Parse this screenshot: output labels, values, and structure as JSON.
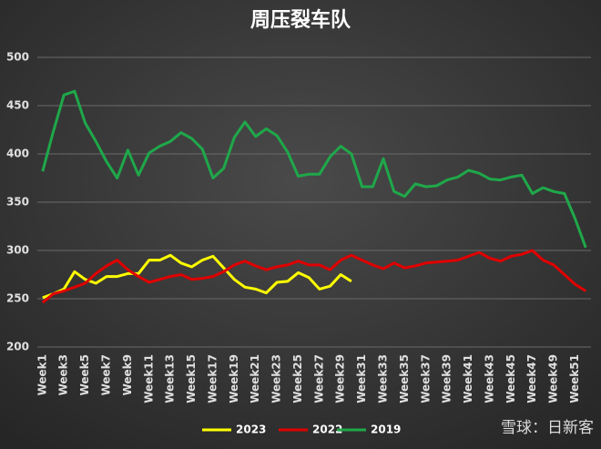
{
  "chart_data": {
    "type": "line",
    "title": "周压裂车队",
    "categories": [
      "Week1",
      null,
      "Week3",
      null,
      "Week5",
      null,
      "Week7",
      null,
      "Week9",
      null,
      "Week11",
      null,
      "Week13",
      null,
      "Week15",
      null,
      "Week17",
      null,
      "Week19",
      null,
      "Week21",
      null,
      "Week23",
      null,
      "Week25",
      null,
      "Week27",
      null,
      "Week29",
      null,
      "Week31",
      null,
      "Week33",
      null,
      "Week35",
      null,
      "Week37",
      null,
      "Week39",
      null,
      "Week41",
      null,
      "Week43",
      null,
      "Week45",
      null,
      "Week47",
      null,
      "Week49",
      null,
      "Week51",
      null
    ],
    "series": [
      {
        "name": "2023",
        "color": "#ffff00",
        "values": [
          251,
          255,
          260,
          278,
          270,
          266,
          273,
          273,
          276,
          276,
          290,
          290,
          295,
          287,
          283,
          290,
          294,
          282,
          270,
          262,
          260,
          256,
          267,
          268,
          277,
          272,
          260,
          263,
          275,
          268,
          null,
          null,
          null,
          null,
          null,
          null,
          null,
          null,
          null,
          null,
          null,
          null,
          null,
          null,
          null,
          null,
          null,
          null,
          null,
          null,
          null,
          null
        ]
      },
      {
        "name": "2022",
        "color": "#e00000",
        "values": [
          246,
          255,
          258,
          262,
          266,
          276,
          284,
          290,
          280,
          273,
          267,
          270,
          273,
          275,
          270,
          271,
          273,
          278,
          285,
          289,
          284,
          280,
          283,
          285,
          289,
          285,
          285,
          280,
          290,
          295,
          290,
          285,
          281,
          287,
          282,
          284,
          287,
          288,
          289,
          290,
          294,
          298,
          292,
          289,
          294,
          296,
          300,
          290,
          285,
          275,
          265,
          258
        ]
      },
      {
        "name": "2019",
        "color": "#1fa84a",
        "values": [
          382,
          423,
          461,
          465,
          432,
          413,
          392,
          375,
          404,
          378,
          401,
          408,
          413,
          422,
          416,
          405,
          375,
          385,
          417,
          433,
          418,
          426,
          419,
          402,
          377,
          379,
          379,
          397,
          408,
          400,
          366,
          366,
          395,
          361,
          356,
          369,
          366,
          367,
          373,
          376,
          383,
          380,
          374,
          373,
          376,
          378,
          359,
          365,
          361,
          359,
          333,
          303
        ]
      }
    ],
    "ylim": [
      200,
      500
    ],
    "yticks": [
      200,
      250,
      300,
      350,
      400,
      450,
      500
    ],
    "grid": true,
    "watermark": "雪球：日新客"
  }
}
